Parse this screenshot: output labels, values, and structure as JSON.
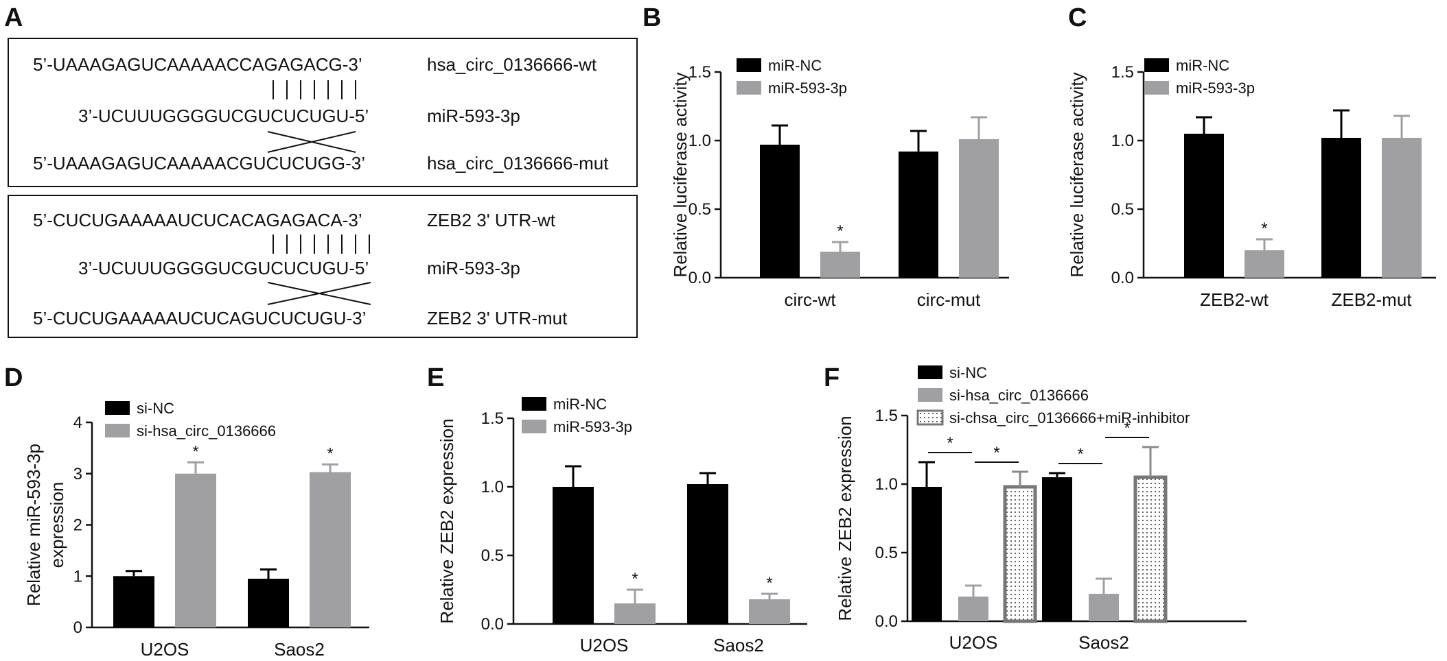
{
  "panel_a": {
    "letter": "A",
    "box1": {
      "seq_wt": "5’-UAAAGAGUCAAAAACCAGAGACG-3’",
      "label_wt": "hsa_circ_0136666-wt",
      "seq_mir": "3’-UCUUUGGGGUCGUCUCUGU-5’",
      "label_mir": "miR-593-3p",
      "seq_mut": "5’-UAAAGAGUCAAAAACGUCUCUGG-3’",
      "label_mut": "hsa_circ_0136666-mut"
    },
    "box2": {
      "seq_wt": "5’-CUCUGAAAAAUCUCACAGAGACA-3’",
      "label_wt": "ZEB2 3' UTR-wt",
      "seq_mir": "3’-UCUUUGGGGUCGUCUCUGU-5’",
      "label_mir": "miR-593-3p",
      "seq_mut": "5’-CUCUGAAAAAUCUCAGUCUCUGU-3’",
      "label_mut": "ZEB2 3' UTR-mut"
    }
  },
  "chart_data": [
    {
      "panel": "B",
      "type": "bar",
      "ylabel": "Relative luciferase activity",
      "ylim": [
        0,
        1.5
      ],
      "yticks": [
        "0.0",
        "0.5",
        "1.0",
        "1.5"
      ],
      "categories": [
        "circ-wt",
        "circ-mut"
      ],
      "legend_position": "top-left",
      "series": [
        {
          "name": "miR-NC",
          "color": "#000000",
          "pattern": "solid",
          "values": [
            0.97,
            0.92
          ],
          "errors": [
            0.14,
            0.15
          ]
        },
        {
          "name": "miR-593-3p",
          "color": "#a0a0a3",
          "pattern": "solid",
          "values": [
            0.19,
            1.01
          ],
          "errors": [
            0.07,
            0.16
          ]
        }
      ],
      "significance": [
        {
          "category": 0,
          "series": 1,
          "text": "*"
        }
      ],
      "brackets": []
    },
    {
      "panel": "C",
      "type": "bar",
      "ylabel": "Relative luciferase activity",
      "ylim": [
        0,
        1.5
      ],
      "yticks": [
        "0.0",
        "0.5",
        "1.0",
        "1.5"
      ],
      "categories": [
        "ZEB2-wt",
        "ZEB2-mut"
      ],
      "legend_position": "top-left",
      "series": [
        {
          "name": "miR-NC",
          "color": "#000000",
          "pattern": "solid",
          "values": [
            1.05,
            1.02
          ],
          "errors": [
            0.12,
            0.2
          ]
        },
        {
          "name": "miR-593-3p",
          "color": "#a0a0a3",
          "pattern": "solid",
          "values": [
            0.2,
            1.02
          ],
          "errors": [
            0.08,
            0.16
          ]
        }
      ],
      "significance": [
        {
          "category": 0,
          "series": 1,
          "text": "*"
        }
      ],
      "brackets": []
    },
    {
      "panel": "D",
      "type": "bar",
      "ylabel": [
        "Relative miR-593-3p",
        "expression"
      ],
      "ylim": [
        0,
        4
      ],
      "yticks": [
        "0",
        "1",
        "2",
        "3",
        "4"
      ],
      "categories": [
        "U2OS",
        "Saos2"
      ],
      "legend_position": "top-left",
      "series": [
        {
          "name": "si-NC",
          "color": "#000000",
          "pattern": "solid",
          "values": [
            1.0,
            0.95
          ],
          "errors": [
            0.1,
            0.18
          ]
        },
        {
          "name": "si-hsa_circ_0136666",
          "color": "#a0a0a3",
          "pattern": "solid",
          "values": [
            3.0,
            3.03
          ],
          "errors": [
            0.22,
            0.15
          ]
        }
      ],
      "significance": [
        {
          "category": 0,
          "series": 1,
          "text": "*"
        },
        {
          "category": 1,
          "series": 1,
          "text": "*"
        }
      ],
      "brackets": []
    },
    {
      "panel": "E",
      "type": "bar",
      "ylabel": "Relative ZEB2 expression",
      "ylim": [
        0,
        1.5
      ],
      "yticks": [
        "0.0",
        "0.5",
        "1.0",
        "1.5"
      ],
      "categories": [
        "U2OS",
        "Saos2"
      ],
      "legend_position": "top-left",
      "series": [
        {
          "name": "miR-NC",
          "color": "#000000",
          "pattern": "solid",
          "values": [
            1.0,
            1.02
          ],
          "errors": [
            0.15,
            0.08
          ]
        },
        {
          "name": "miR-593-3p",
          "color": "#a0a0a3",
          "pattern": "solid",
          "values": [
            0.15,
            0.18
          ],
          "errors": [
            0.1,
            0.04
          ]
        }
      ],
      "significance": [
        {
          "category": 0,
          "series": 1,
          "text": "*"
        },
        {
          "category": 1,
          "series": 1,
          "text": "*"
        }
      ],
      "brackets": []
    },
    {
      "panel": "F",
      "type": "bar",
      "ylabel": "Relative ZEB2 expression",
      "ylim": [
        0,
        1.5
      ],
      "yticks": [
        "0.0",
        "0.5",
        "1.0",
        "1.5"
      ],
      "categories": [
        "U2OS",
        "Saos2"
      ],
      "legend_position": "top-left",
      "series": [
        {
          "name": "si-NC",
          "color": "#000000",
          "pattern": "solid",
          "values": [
            0.98,
            1.05
          ],
          "errors": [
            0.18,
            0.03
          ]
        },
        {
          "name": "si-hsa_circ_0136666",
          "color": "#a0a0a3",
          "pattern": "solid",
          "values": [
            0.18,
            0.2
          ],
          "errors": [
            0.08,
            0.11
          ]
        },
        {
          "name": "si-chsa_circ_0136666+miR-inhibitor",
          "color": "#8a8a8a",
          "pattern": "dotted",
          "values": [
            0.98,
            1.05
          ],
          "errors": [
            0.11,
            0.22
          ]
        }
      ],
      "significance": [],
      "brackets": [
        {
          "category": 0,
          "from": 0,
          "to": 1,
          "text": "*"
        },
        {
          "category": 0,
          "from": 1,
          "to": 2,
          "text": "*"
        },
        {
          "category": 1,
          "from": 0,
          "to": 1,
          "text": "*"
        },
        {
          "category": 1,
          "from": 1,
          "to": 2,
          "text": "*"
        }
      ]
    }
  ]
}
